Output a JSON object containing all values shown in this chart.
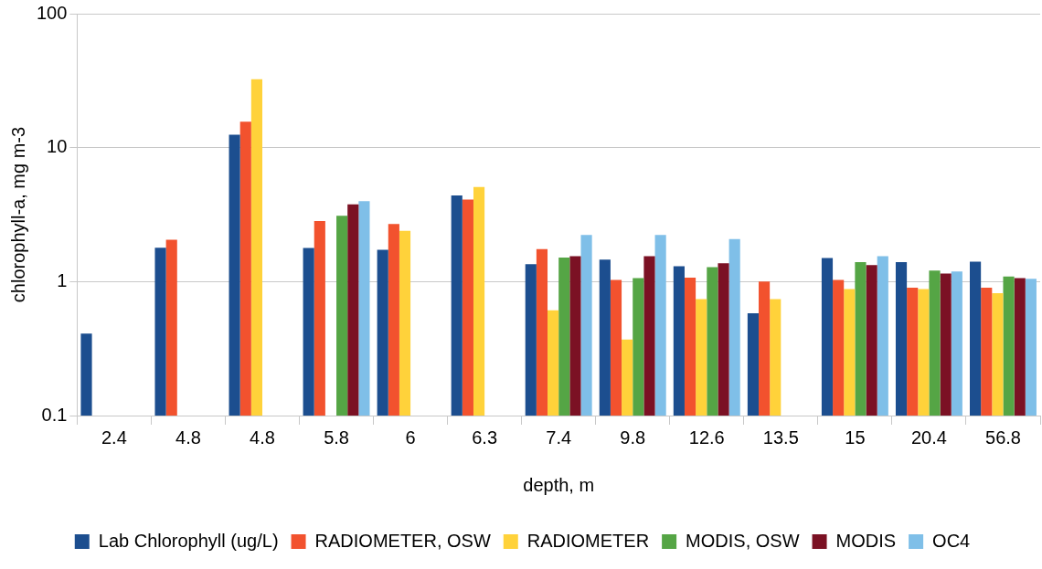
{
  "chart_data": {
    "type": "bar",
    "xlabel": "depth, m",
    "ylabel": "chlorophyll-a, mg m-3",
    "categories": [
      "2.4",
      "4.8",
      "4.8",
      "5.8",
      "6",
      "6.3",
      "7.4",
      "9.8",
      "12.6",
      "13.5",
      "15",
      "20.4",
      "56.8"
    ],
    "series": [
      {
        "name": "Lab Chlorophyll (ug/L)",
        "color": "#1c4e8f",
        "values": [
          0.41,
          1.79,
          12.5,
          1.78,
          1.73,
          4.4,
          1.35,
          1.46,
          1.3,
          0.58,
          1.5,
          1.4,
          1.41
        ]
      },
      {
        "name": "RADIOMETER, OSW",
        "color": "#f2522e",
        "values": [
          null,
          2.05,
          15.6,
          2.83,
          2.69,
          4.1,
          1.75,
          1.03,
          1.07,
          1.0,
          1.03,
          0.9,
          0.9
        ]
      },
      {
        "name": "RADIOMETER",
        "color": "#ffd23a",
        "values": [
          null,
          null,
          32.4,
          null,
          2.39,
          5.08,
          0.61,
          0.37,
          0.74,
          0.74,
          0.88,
          0.88,
          0.82
        ]
      },
      {
        "name": "MODIS, OSW",
        "color": "#55a545",
        "values": [
          null,
          null,
          null,
          3.1,
          null,
          null,
          1.51,
          1.06,
          1.28,
          null,
          1.4,
          1.21,
          1.09
        ]
      },
      {
        "name": "MODIS",
        "color": "#7b1124",
        "values": [
          null,
          null,
          null,
          3.78,
          null,
          null,
          1.55,
          1.55,
          1.37,
          null,
          1.33,
          1.15,
          1.06
        ]
      },
      {
        "name": "OC4",
        "color": "#7fbfe8",
        "values": [
          null,
          null,
          null,
          3.98,
          null,
          null,
          2.23,
          2.23,
          2.08,
          null,
          1.55,
          1.19,
          1.05
        ]
      }
    ],
    "log": "y",
    "ylim": [
      0.1,
      100
    ],
    "yticks": [
      0.1,
      1,
      10,
      100
    ],
    "grid": "y",
    "legend": "bottom"
  }
}
